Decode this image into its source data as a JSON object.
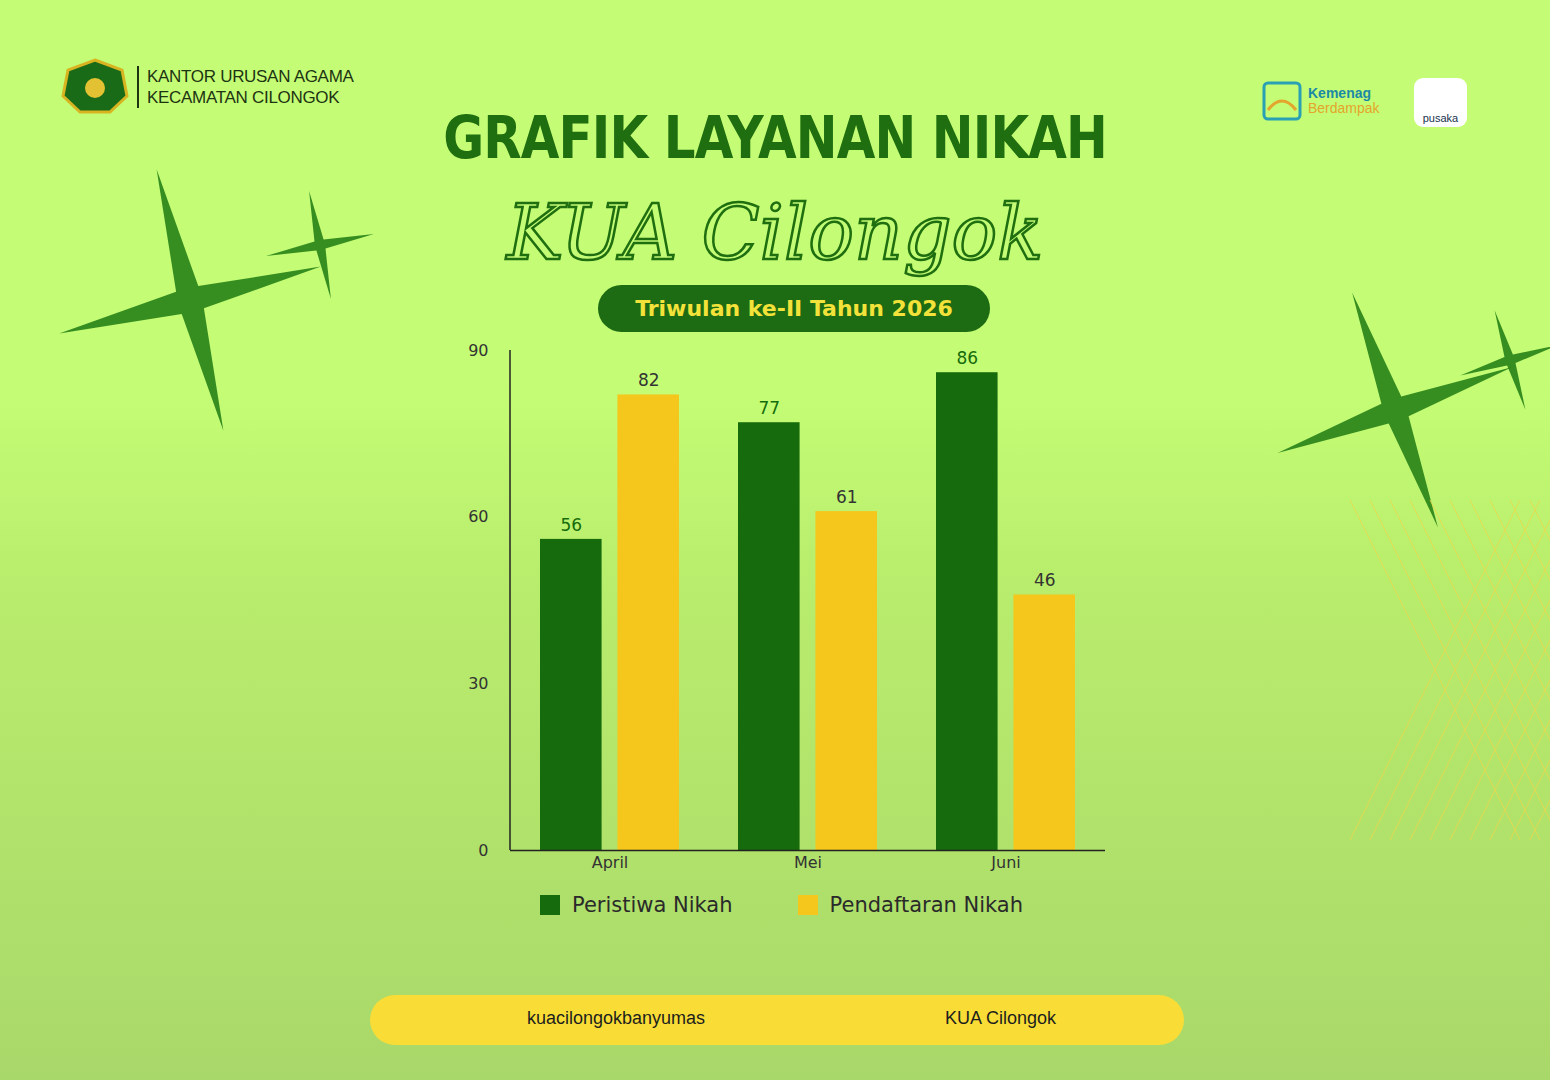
{
  "header": {
    "office": [
      "KANTOR URUSAN AGAMA",
      "KECAMATAN CILONGOK"
    ],
    "kemenag_logo": [
      "Kemenag",
      "Berdampak"
    ],
    "pusaka_logo": "pusaka"
  },
  "chart_data": {
    "type": "bar",
    "title": "GRAFIK LAYANAN NIKAH",
    "subtitle": "KUA Cilongok",
    "annotations": [
      "Triwulan ke-II Tahun 2026"
    ],
    "categories": [
      "April",
      "Mei",
      "Juni"
    ],
    "series": [
      {
        "name": "Peristiwa Nikah",
        "color": "#166b0c",
        "values": [
          56,
          77,
          86
        ]
      },
      {
        "name": "Pendaftaran Nikah",
        "color": "#f5c61b",
        "values": [
          82,
          61,
          46
        ]
      }
    ],
    "ylim": [
      0,
      90
    ],
    "yticks": [
      0,
      30,
      60,
      90
    ],
    "grid": false,
    "legend": "bottom",
    "data_labels": true
  },
  "footer": {
    "instagram": "kuacilongokbanyumas",
    "facebook": "KUA Cilongok"
  }
}
